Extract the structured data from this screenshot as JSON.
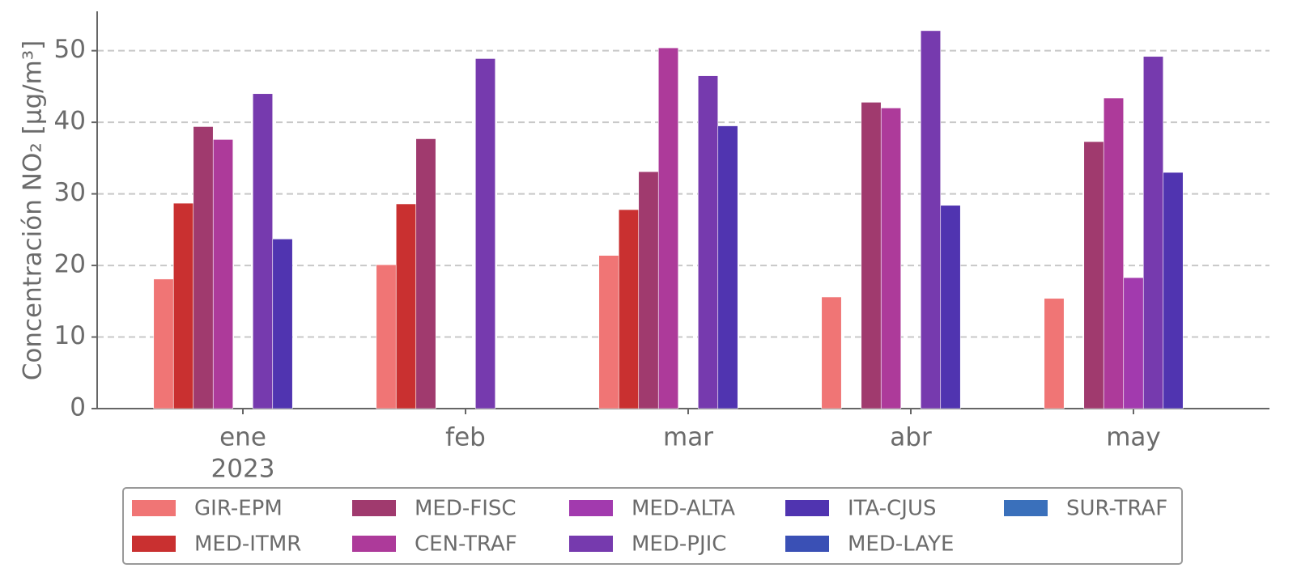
{
  "chart_data": {
    "type": "bar",
    "y_label": "Concentración NO₂ [μg/m³]",
    "categories": [
      "ene",
      "feb",
      "mar",
      "abr",
      "may"
    ],
    "year": "2023",
    "ylim": [
      0,
      55.5
    ],
    "yticks": [
      0,
      10,
      20,
      30,
      40,
      50
    ],
    "grid": true,
    "legend_position": "bottom",
    "series": [
      {
        "name": "GIR-EPM",
        "color": "#f07575",
        "values": [
          18.1,
          20.1,
          21.4,
          15.6,
          15.4
        ]
      },
      {
        "name": "MED-ITMR",
        "color": "#c93030",
        "values": [
          28.7,
          28.6,
          27.8,
          null,
          null
        ]
      },
      {
        "name": "MED-FISC",
        "color": "#a03a6e",
        "values": [
          39.4,
          37.7,
          33.1,
          42.8,
          37.3
        ]
      },
      {
        "name": "CEN-TRAF",
        "color": "#ad3a9a",
        "values": [
          37.6,
          null,
          50.4,
          42.0,
          43.4
        ]
      },
      {
        "name": "MED-ALTA",
        "color": "#a23aae",
        "values": [
          null,
          null,
          null,
          null,
          18.3
        ]
      },
      {
        "name": "MED-PJIC",
        "color": "#763aae",
        "values": [
          44.0,
          48.9,
          46.5,
          52.8,
          49.2
        ]
      },
      {
        "name": "ITA-CJUS",
        "color": "#5034b0",
        "values": [
          23.7,
          null,
          39.5,
          28.4,
          33.0
        ]
      },
      {
        "name": "MED-LAYE",
        "color": "#3a50b5",
        "values": [
          null,
          null,
          null,
          null,
          null
        ]
      },
      {
        "name": "SUR-TRAF",
        "color": "#3a70bb",
        "values": [
          null,
          null,
          null,
          null,
          null
        ]
      }
    ]
  }
}
